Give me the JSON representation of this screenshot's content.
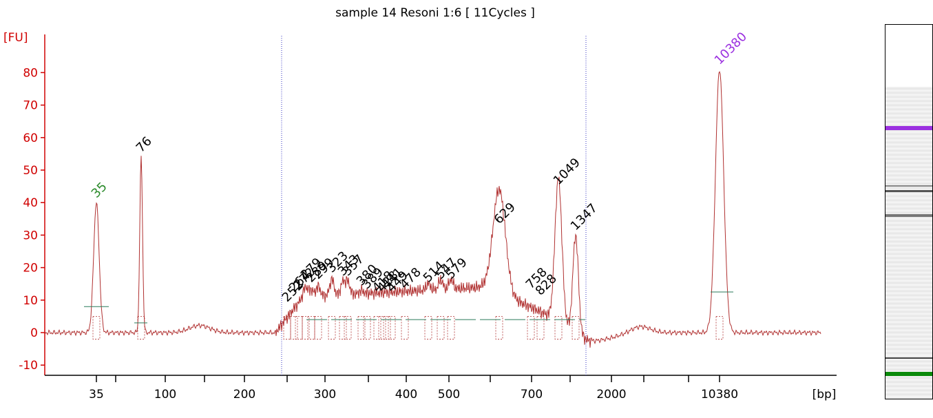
{
  "chart_data": {
    "type": "line",
    "title": "sample 14 Resoni 1:6  [ 11Cycles ]",
    "ylabel": "[FU]",
    "xlabel": "[bp]",
    "ylim": [
      -10,
      90
    ],
    "yticks": [
      -10,
      0,
      10,
      20,
      30,
      40,
      50,
      60,
      70,
      80
    ],
    "xtick_labels": [
      "35",
      "100",
      "200",
      "300",
      "400",
      "500",
      "700",
      "2000",
      "10380"
    ],
    "x_unit": "bp",
    "line_color": "#b03030",
    "axis_color": "#d00000",
    "peaks": [
      {
        "label": "35",
        "fu": 40,
        "label_color": "#2a8a2a"
      },
      {
        "label": "76",
        "fu": 54,
        "label_color": "#000000"
      },
      {
        "label": "252",
        "fu": 8,
        "label_color": "#000000"
      },
      {
        "label": "264",
        "fu": 11,
        "label_color": "#000000"
      },
      {
        "label": "272",
        "fu": 12,
        "label_color": "#000000"
      },
      {
        "label": "279",
        "fu": 15,
        "label_color": "#000000"
      },
      {
        "label": "289",
        "fu": 14,
        "label_color": "#000000"
      },
      {
        "label": "299",
        "fu": 15,
        "label_color": "#000000"
      },
      {
        "label": "323",
        "fu": 17,
        "label_color": "#000000"
      },
      {
        "label": "343",
        "fu": 16,
        "label_color": "#000000"
      },
      {
        "label": "357",
        "fu": 16,
        "label_color": "#000000"
      },
      {
        "label": "380",
        "fu": 13,
        "label_color": "#000000"
      },
      {
        "label": "389",
        "fu": 12,
        "label_color": "#000000"
      },
      {
        "label": "418",
        "fu": 11,
        "label_color": "#000000"
      },
      {
        "label": "428",
        "fu": 11,
        "label_color": "#000000"
      },
      {
        "label": "441",
        "fu": 12,
        "label_color": "#000000"
      },
      {
        "label": "449",
        "fu": 11,
        "label_color": "#000000"
      },
      {
        "label": "478",
        "fu": 12,
        "label_color": "#000000"
      },
      {
        "label": "514",
        "fu": 14,
        "label_color": "#000000"
      },
      {
        "label": "547",
        "fu": 15,
        "label_color": "#000000"
      },
      {
        "label": "579",
        "fu": 15,
        "label_color": "#000000"
      },
      {
        "label": "629",
        "fu": 32,
        "label_color": "#000000"
      },
      {
        "label": "758",
        "fu": 12,
        "label_color": "#000000"
      },
      {
        "label": "828",
        "fu": 10,
        "label_color": "#000000"
      },
      {
        "label": "1049",
        "fu": 44,
        "label_color": "#000000"
      },
      {
        "label": "1347",
        "fu": 30,
        "label_color": "#000000"
      },
      {
        "label": "10380",
        "fu": 81,
        "label_color": "#9b30e0"
      }
    ],
    "marker_colors": {
      "lower": "#0a8a0a",
      "upper": "#9b30e0"
    },
    "grid": false,
    "legend": "none"
  }
}
